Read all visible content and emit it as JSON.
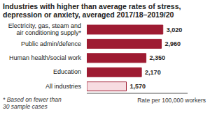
{
  "chart_data": {
    "type": "bar",
    "orientation": "horizontal",
    "title": "Industries with higher than average rates of stress, depression or anxiety, averaged 2017/18–2019/20",
    "categories": [
      "Electricity, gas, steam and air conditioning supply*",
      "Public admin/defence",
      "Human health/social work",
      "Education",
      "All industries"
    ],
    "values": [
      3020,
      2960,
      2350,
      2170,
      1570
    ],
    "value_labels": [
      "3,020",
      "2,960",
      "2,350",
      "2,170",
      "1,570"
    ],
    "data_labels": true,
    "colors": [
      "#9e1b32",
      "#9e1b32",
      "#9e1b32",
      "#9e1b32",
      "#f7dce1"
    ],
    "xlabel": "Rate per 100,000 workers",
    "xlim": [
      0,
      4000
    ],
    "tick_labels": "y",
    "grid": false,
    "annotations": [
      "* Based on fewer than 30 sample cases"
    ]
  }
}
